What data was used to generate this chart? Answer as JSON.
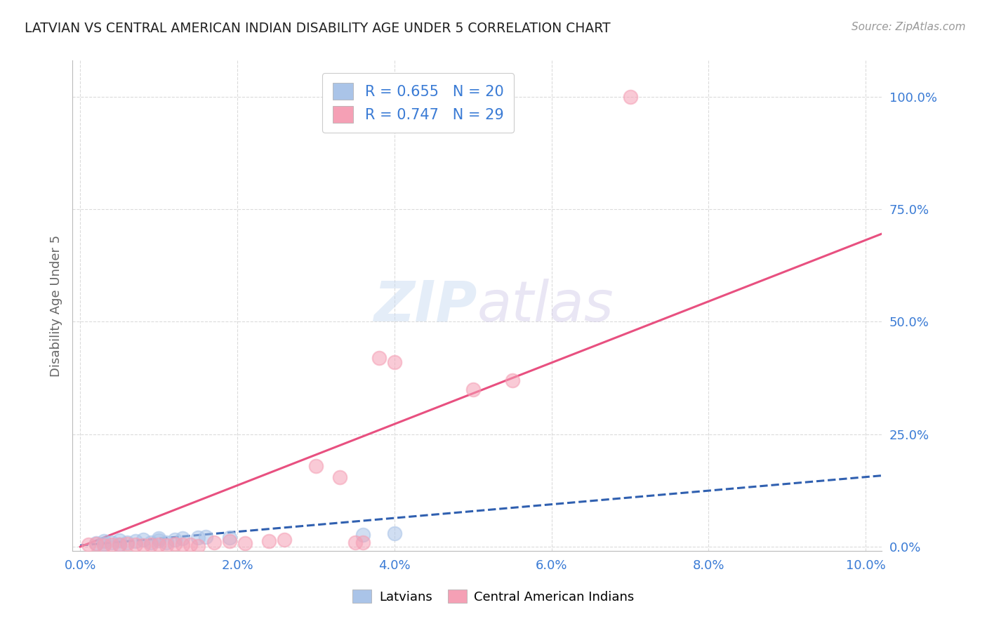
{
  "title": "LATVIAN VS CENTRAL AMERICAN INDIAN DISABILITY AGE UNDER 5 CORRELATION CHART",
  "source": "Source: ZipAtlas.com",
  "ylabel": "Disability Age Under 5",
  "xlabel_ticks": [
    "0.0%",
    "2.0%",
    "4.0%",
    "6.0%",
    "8.0%",
    "10.0%"
  ],
  "xlabel_vals": [
    0.0,
    0.02,
    0.04,
    0.06,
    0.08,
    0.1
  ],
  "ylabel_ticks": [
    "0.0%",
    "25.0%",
    "50.0%",
    "75.0%",
    "100.0%"
  ],
  "ylabel_vals": [
    0.0,
    0.25,
    0.5,
    0.75,
    1.0
  ],
  "xlim": [
    -0.001,
    0.102
  ],
  "ylim": [
    -0.01,
    1.08
  ],
  "latvian_R": 0.655,
  "latvian_N": 20,
  "central_R": 0.747,
  "central_N": 29,
  "latvian_color": "#aac4e8",
  "central_color": "#f5a0b5",
  "latvian_line_color": "#3060b0",
  "central_line_color": "#e85080",
  "background_color": "#ffffff",
  "grid_color": "#d8d8d8",
  "title_color": "#222222",
  "watermark_color": "#d0e0f0",
  "latvian_points": [
    [
      0.002,
      0.008
    ],
    [
      0.003,
      0.012
    ],
    [
      0.003,
      0.006
    ],
    [
      0.004,
      0.01
    ],
    [
      0.005,
      0.014
    ],
    [
      0.005,
      0.005
    ],
    [
      0.006,
      0.01
    ],
    [
      0.007,
      0.012
    ],
    [
      0.008,
      0.016
    ],
    [
      0.009,
      0.01
    ],
    [
      0.01,
      0.014
    ],
    [
      0.01,
      0.018
    ],
    [
      0.011,
      0.01
    ],
    [
      0.012,
      0.016
    ],
    [
      0.013,
      0.018
    ],
    [
      0.015,
      0.02
    ],
    [
      0.016,
      0.022
    ],
    [
      0.019,
      0.02
    ],
    [
      0.036,
      0.026
    ],
    [
      0.04,
      0.03
    ]
  ],
  "central_points": [
    [
      0.001,
      0.004
    ],
    [
      0.002,
      0.006
    ],
    [
      0.003,
      0.003
    ],
    [
      0.004,
      0.005
    ],
    [
      0.005,
      0.004
    ],
    [
      0.006,
      0.006
    ],
    [
      0.007,
      0.004
    ],
    [
      0.008,
      0.003
    ],
    [
      0.009,
      0.005
    ],
    [
      0.01,
      0.004
    ],
    [
      0.011,
      0.003
    ],
    [
      0.012,
      0.006
    ],
    [
      0.013,
      0.005
    ],
    [
      0.014,
      0.004
    ],
    [
      0.015,
      0.002
    ],
    [
      0.017,
      0.01
    ],
    [
      0.019,
      0.012
    ],
    [
      0.021,
      0.008
    ],
    [
      0.024,
      0.012
    ],
    [
      0.026,
      0.015
    ],
    [
      0.03,
      0.18
    ],
    [
      0.033,
      0.155
    ],
    [
      0.035,
      0.01
    ],
    [
      0.036,
      0.01
    ],
    [
      0.038,
      0.42
    ],
    [
      0.04,
      0.41
    ],
    [
      0.05,
      0.35
    ],
    [
      0.055,
      0.37
    ],
    [
      0.07,
      1.0
    ]
  ],
  "latvian_trendline_x": [
    0.0,
    0.102
  ],
  "latvian_trendline_y": [
    0.003,
    0.158
  ],
  "central_trendline_x": [
    0.0,
    0.102
  ],
  "central_trendline_y": [
    0.0,
    0.695
  ]
}
